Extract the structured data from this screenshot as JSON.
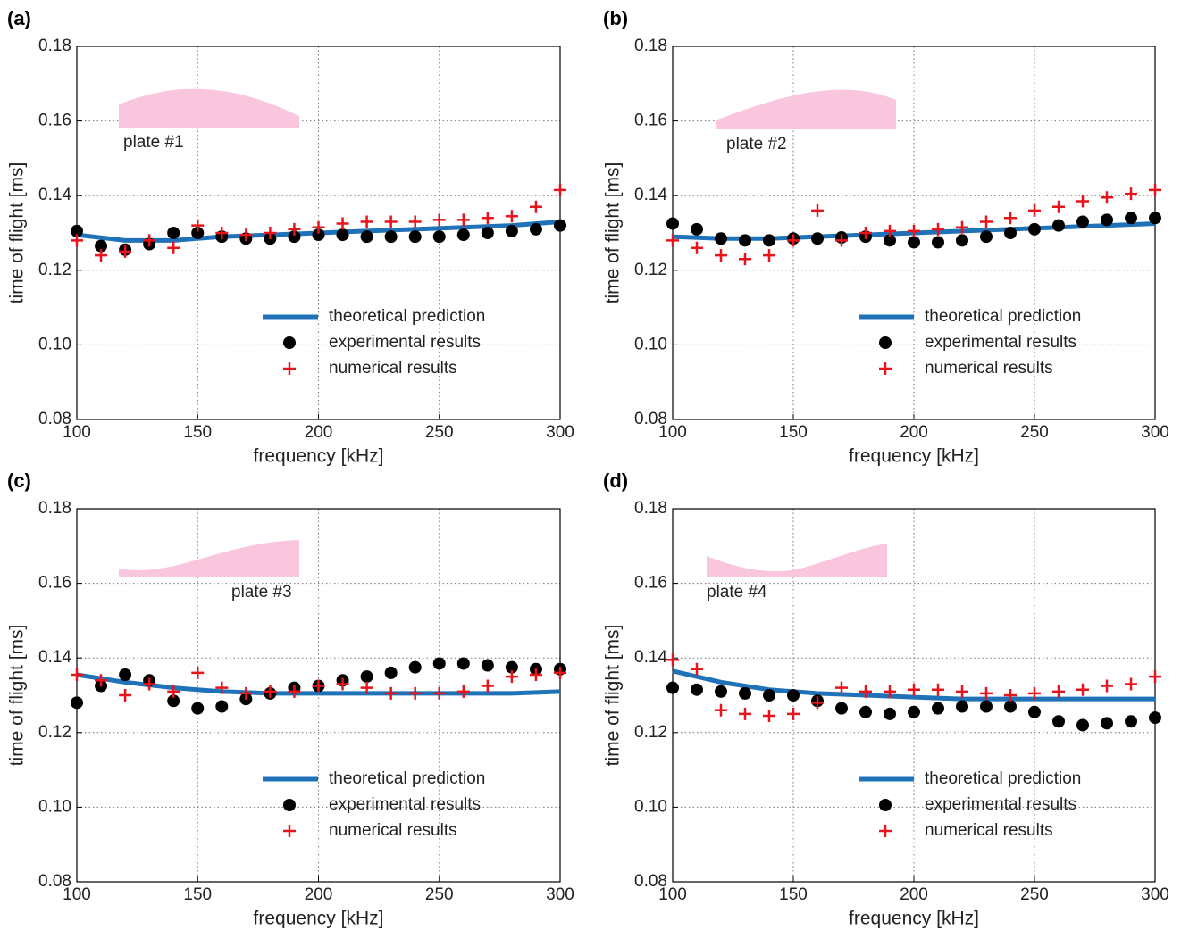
{
  "chart_data": [
    {
      "type": "line",
      "label": "(a)",
      "annotation": "plate #1",
      "xlabel": "frequency [kHz]",
      "ylabel": "time of flight [ms]",
      "xlim": [
        100,
        300
      ],
      "xticks": [
        100,
        150,
        200,
        250,
        300
      ],
      "ylim": [
        0.08,
        0.18
      ],
      "yticks": [
        0.08,
        {
          "value": 0.1,
          "label": "0.10"
        },
        0.12,
        0.14,
        0.16,
        0.18
      ],
      "grid": true,
      "series": [
        {
          "name": "theoretical prediction",
          "color": "#1f72b8",
          "marker": "line",
          "x": [
            100,
            120,
            140,
            160,
            180,
            200,
            220,
            240,
            260,
            280,
            300
          ],
          "values": [
            0.1295,
            0.128,
            0.128,
            0.129,
            0.1295,
            0.13,
            0.1305,
            0.131,
            0.1315,
            0.132,
            0.133
          ]
        },
        {
          "name": "experimental results",
          "color": "#000000",
          "marker": "dot",
          "x": [
            100,
            110,
            120,
            130,
            140,
            150,
            160,
            170,
            180,
            190,
            200,
            210,
            220,
            230,
            240,
            250,
            260,
            270,
            280,
            290,
            300
          ],
          "values": [
            0.1305,
            0.1265,
            0.1255,
            0.127,
            0.13,
            0.13,
            0.129,
            0.1285,
            0.1285,
            0.129,
            0.1295,
            0.1295,
            0.129,
            0.129,
            0.129,
            0.129,
            0.1295,
            0.13,
            0.1305,
            0.131,
            0.132
          ]
        },
        {
          "name": "numerical results",
          "color": "#e8141c",
          "marker": "plus",
          "x": [
            100,
            110,
            120,
            130,
            140,
            150,
            160,
            170,
            180,
            190,
            200,
            210,
            220,
            230,
            240,
            250,
            260,
            270,
            280,
            290,
            300
          ],
          "values": [
            0.128,
            0.124,
            0.125,
            0.128,
            0.126,
            0.132,
            0.13,
            0.1295,
            0.13,
            0.131,
            0.1315,
            0.1325,
            0.133,
            0.133,
            0.133,
            0.1335,
            0.1335,
            0.134,
            0.1345,
            0.137,
            0.1415
          ]
        }
      ]
    },
    {
      "type": "line",
      "label": "(b)",
      "annotation": "plate #2",
      "xlabel": "frequency [kHz]",
      "ylabel": "time of flight [ms]",
      "xlim": [
        100,
        300
      ],
      "xticks": [
        100,
        150,
        200,
        250,
        300
      ],
      "ylim": [
        0.08,
        0.18
      ],
      "yticks": [
        0.08,
        {
          "value": 0.1,
          "label": "0.10"
        },
        0.12,
        0.14,
        0.16,
        0.18
      ],
      "grid": true,
      "series": [
        {
          "name": "theoretical prediction",
          "color": "#1f72b8",
          "marker": "line",
          "x": [
            100,
            120,
            140,
            160,
            180,
            200,
            220,
            240,
            260,
            280,
            300
          ],
          "values": [
            0.129,
            0.1285,
            0.1285,
            0.129,
            0.1295,
            0.13,
            0.1305,
            0.131,
            0.1315,
            0.132,
            0.1325
          ]
        },
        {
          "name": "experimental results",
          "color": "#000000",
          "marker": "dot",
          "x": [
            100,
            110,
            120,
            130,
            140,
            150,
            160,
            170,
            180,
            190,
            200,
            210,
            220,
            230,
            240,
            250,
            260,
            270,
            280,
            290,
            300
          ],
          "values": [
            0.1325,
            0.131,
            0.1285,
            0.128,
            0.128,
            0.1285,
            0.1285,
            0.1288,
            0.129,
            0.128,
            0.1275,
            0.1275,
            0.128,
            0.129,
            0.13,
            0.131,
            0.132,
            0.133,
            0.1335,
            0.134,
            0.134
          ]
        },
        {
          "name": "numerical results",
          "color": "#e8141c",
          "marker": "plus",
          "x": [
            100,
            110,
            120,
            130,
            140,
            150,
            160,
            170,
            180,
            190,
            200,
            210,
            220,
            230,
            240,
            250,
            260,
            270,
            280,
            290,
            300
          ],
          "values": [
            0.128,
            0.126,
            0.124,
            0.123,
            0.124,
            0.128,
            0.136,
            0.128,
            0.13,
            0.1305,
            0.1305,
            0.131,
            0.1315,
            0.133,
            0.134,
            0.136,
            0.137,
            0.1385,
            0.1395,
            0.1405,
            0.1415
          ]
        }
      ]
    },
    {
      "type": "line",
      "label": "(c)",
      "annotation": "plate #3",
      "xlabel": "frequency [kHz]",
      "ylabel": "time of flight [ms]",
      "xlim": [
        100,
        300
      ],
      "xticks": [
        100,
        150,
        200,
        250,
        300
      ],
      "ylim": [
        0.08,
        0.18
      ],
      "yticks": [
        0.08,
        {
          "value": 0.1,
          "label": "0.10"
        },
        0.12,
        0.14,
        0.16,
        0.18
      ],
      "grid": true,
      "series": [
        {
          "name": "theoretical prediction",
          "color": "#1f72b8",
          "marker": "line",
          "x": [
            100,
            120,
            140,
            160,
            180,
            200,
            220,
            240,
            260,
            280,
            300
          ],
          "values": [
            0.1355,
            0.1335,
            0.132,
            0.131,
            0.1305,
            0.1305,
            0.1305,
            0.1305,
            0.1305,
            0.1305,
            0.131
          ]
        },
        {
          "name": "experimental results",
          "color": "#000000",
          "marker": "dot",
          "x": [
            100,
            110,
            120,
            130,
            140,
            150,
            160,
            170,
            180,
            190,
            200,
            210,
            220,
            230,
            240,
            250,
            260,
            270,
            280,
            290,
            300
          ],
          "values": [
            0.128,
            0.1325,
            0.1355,
            0.134,
            0.1285,
            0.1265,
            0.127,
            0.129,
            0.1305,
            0.132,
            0.1325,
            0.134,
            0.135,
            0.136,
            0.1375,
            0.1385,
            0.1385,
            0.138,
            0.1375,
            0.137,
            0.137
          ]
        },
        {
          "name": "numerical results",
          "color": "#e8141c",
          "marker": "plus",
          "x": [
            100,
            110,
            120,
            130,
            140,
            150,
            160,
            170,
            180,
            190,
            200,
            210,
            220,
            230,
            240,
            250,
            260,
            270,
            280,
            290,
            300
          ],
          "values": [
            0.1355,
            0.134,
            0.13,
            0.133,
            0.131,
            0.136,
            0.132,
            0.1305,
            0.131,
            0.131,
            0.1325,
            0.133,
            0.132,
            0.1305,
            0.1305,
            0.1305,
            0.131,
            0.1325,
            0.135,
            0.1355,
            0.136
          ]
        }
      ]
    },
    {
      "type": "line",
      "label": "(d)",
      "annotation": "plate #4",
      "xlabel": "frequency [kHz]",
      "ylabel": "time of flight [ms]",
      "xlim": [
        100,
        300
      ],
      "xticks": [
        100,
        150,
        200,
        250,
        300
      ],
      "ylim": [
        0.08,
        0.18
      ],
      "yticks": [
        0.08,
        {
          "value": 0.1,
          "label": "0.10"
        },
        0.12,
        0.14,
        0.16,
        0.18
      ],
      "grid": true,
      "series": [
        {
          "name": "theoretical prediction",
          "color": "#1f72b8",
          "marker": "line",
          "x": [
            100,
            120,
            140,
            160,
            180,
            200,
            220,
            240,
            260,
            280,
            300
          ],
          "values": [
            0.1365,
            0.1335,
            0.1315,
            0.1305,
            0.13,
            0.1295,
            0.129,
            0.129,
            0.129,
            0.129,
            0.129
          ]
        },
        {
          "name": "experimental results",
          "color": "#000000",
          "marker": "dot",
          "x": [
            100,
            110,
            120,
            130,
            140,
            150,
            160,
            170,
            180,
            190,
            200,
            210,
            220,
            230,
            240,
            250,
            260,
            270,
            280,
            290,
            300
          ],
          "values": [
            0.132,
            0.1315,
            0.131,
            0.1305,
            0.13,
            0.13,
            0.1285,
            0.1265,
            0.1255,
            0.125,
            0.1255,
            0.1265,
            0.127,
            0.127,
            0.127,
            0.1255,
            0.123,
            0.122,
            0.1225,
            0.123,
            0.124
          ]
        },
        {
          "name": "numerical results",
          "color": "#e8141c",
          "marker": "plus",
          "x": [
            100,
            110,
            120,
            130,
            140,
            150,
            160,
            170,
            180,
            190,
            200,
            210,
            220,
            230,
            240,
            250,
            260,
            270,
            280,
            290,
            300
          ],
          "values": [
            0.1395,
            0.137,
            0.126,
            0.125,
            0.1245,
            0.125,
            0.128,
            0.132,
            0.131,
            0.131,
            0.1315,
            0.1315,
            0.131,
            0.1305,
            0.13,
            0.1305,
            0.131,
            0.1315,
            0.1325,
            0.133,
            0.135
          ]
        }
      ]
    }
  ]
}
